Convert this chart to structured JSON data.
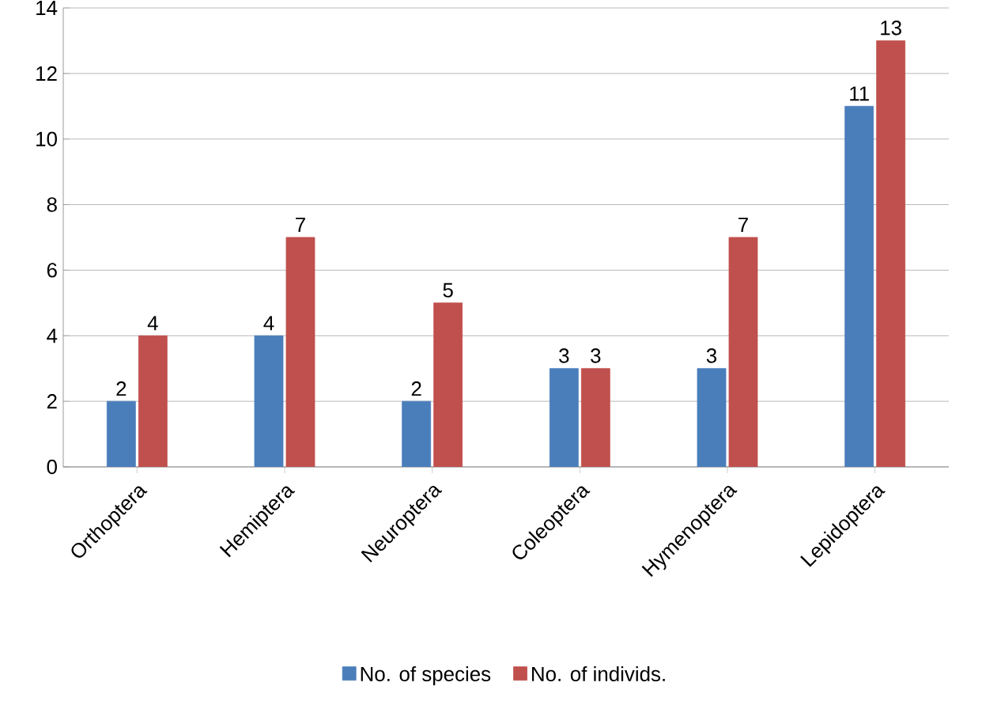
{
  "chart_data": {
    "type": "bar",
    "categories": [
      "Orthoptera",
      "Hemiptera",
      "Neuroptera",
      "Coleoptera",
      "Hymenoptera",
      "Lepidoptera"
    ],
    "series": [
      {
        "name": "No. of species",
        "color": "#4a7ebb",
        "values": [
          2,
          4,
          2,
          3,
          3,
          11
        ]
      },
      {
        "name": "No. of individs.",
        "color": "#c0504d",
        "values": [
          4,
          7,
          5,
          3,
          7,
          13
        ]
      }
    ],
    "ylim": [
      0,
      14
    ],
    "yticks": [
      0,
      2,
      4,
      6,
      8,
      10,
      12,
      14
    ],
    "grid": "y",
    "legend": "bottom",
    "data_labels": true
  }
}
